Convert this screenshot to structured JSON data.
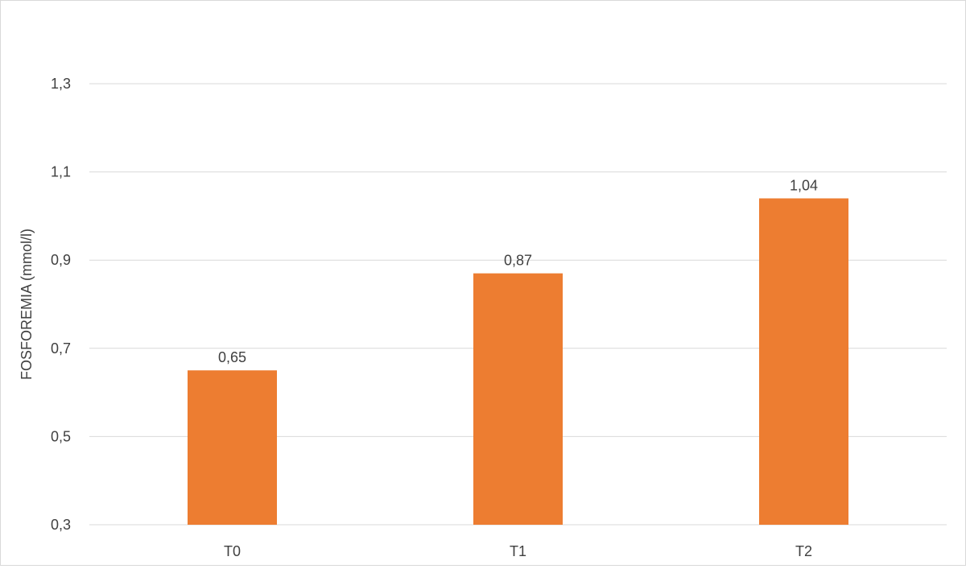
{
  "chart_data": {
    "type": "bar",
    "categories": [
      "T0",
      "T1",
      "T2"
    ],
    "values": [
      0.65,
      0.87,
      1.04
    ],
    "data_labels": [
      "0,65",
      "0,87",
      "1,04"
    ],
    "title": "",
    "xlabel": "",
    "ylabel": "FOSFOREMIA (mmol/l)",
    "ylim": [
      0.3,
      1.3
    ],
    "yticks": [
      0.3,
      0.5,
      0.7,
      0.9,
      1.1,
      1.3
    ],
    "ytick_labels": [
      "0,3",
      "0,5",
      "0,7",
      "0,9",
      "1,1",
      "1,3"
    ],
    "grid": true,
    "legend": "none",
    "bar_color": "#ED7D31",
    "grid_color": "#d9d9d9"
  }
}
